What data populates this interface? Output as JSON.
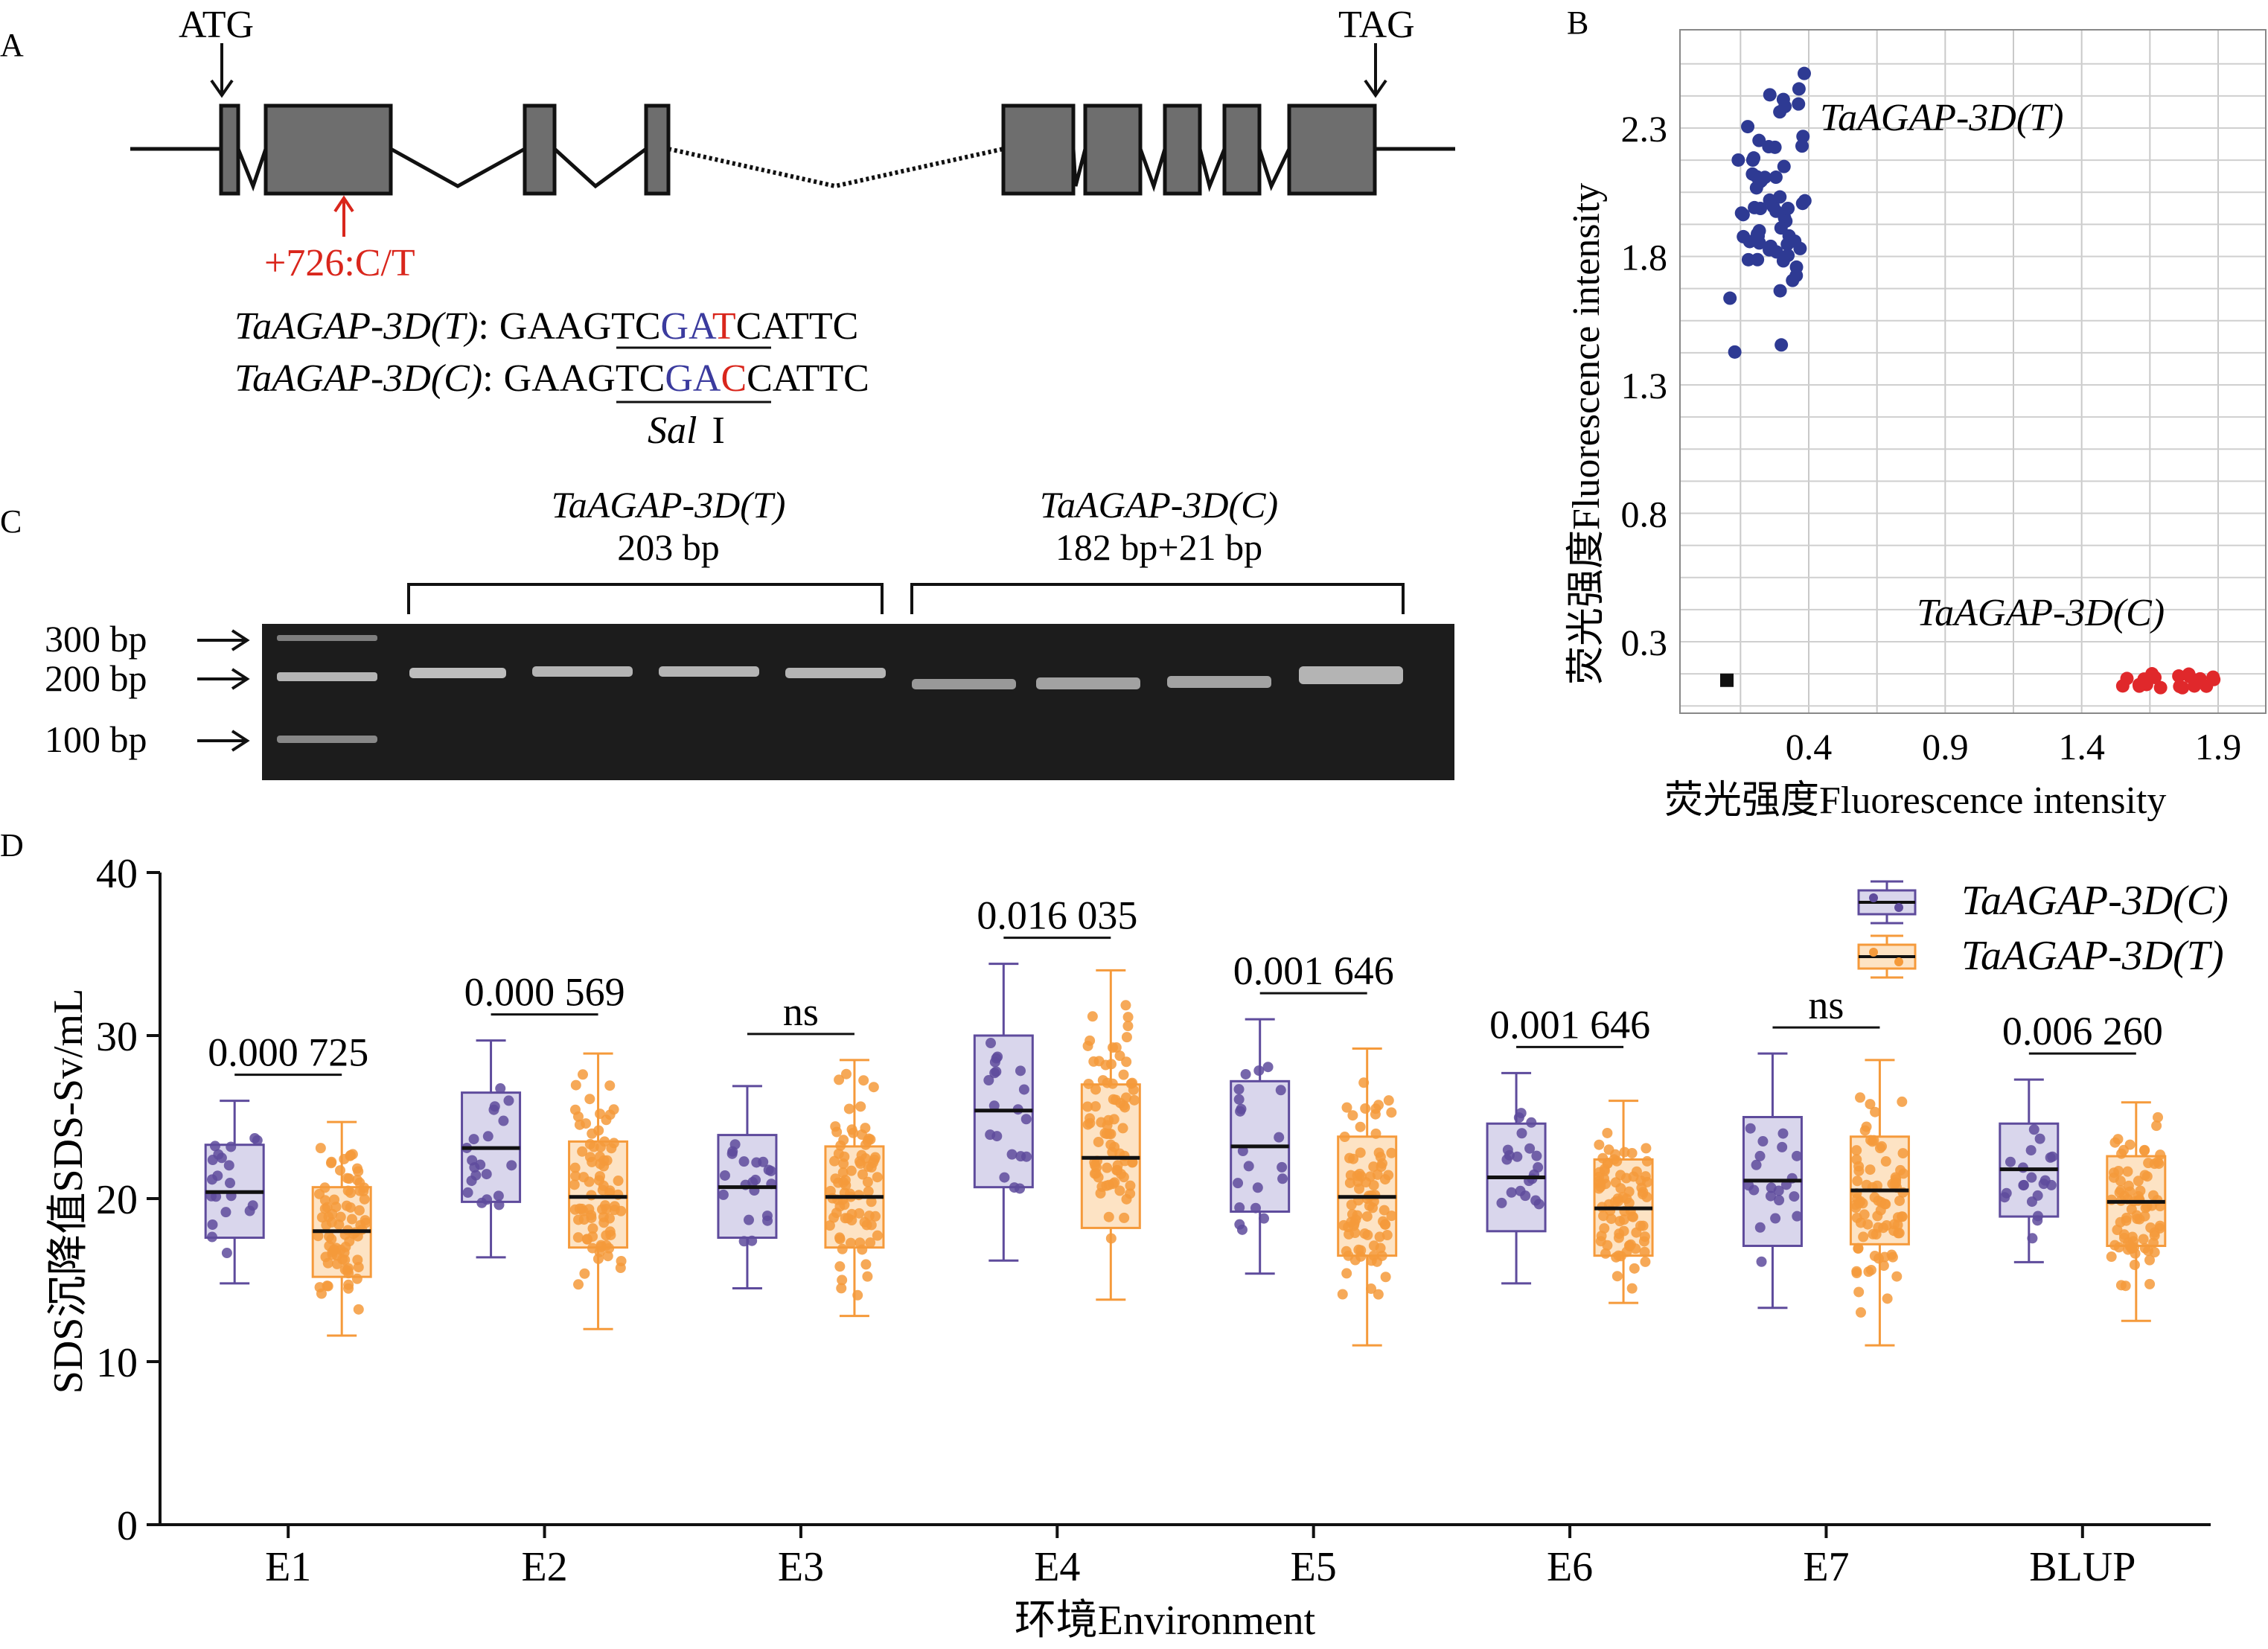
{
  "panels": {
    "a": "A",
    "b": "B",
    "c": "C",
    "d": "D"
  },
  "gene": {
    "start_codon": "ATG",
    "stop_codon": "TAG",
    "snp_label": "+726:C/T",
    "seq_t_name": "TaAGAP-3D(T)",
    "seq_c_name": "TaAGAP-3D(C)",
    "seq_prefix": "GA",
    "seq_site_underlined": "AGTC",
    "seq_g": "G",
    "seq_a": "A",
    "seq_t_snp": "T",
    "seq_c_snp": "C",
    "seq_suffix": "CATTC",
    "colon": ":",
    "enzyme_italic": "Sal",
    "enzyme_roman": "I",
    "colors": {
      "exon": "#6e6e6e",
      "snp_red": "#d9261c",
      "site_blue": "#3b3b9e"
    }
  },
  "gel": {
    "group_t_name": "TaAGAP-3D(T)",
    "group_t_size": "203 bp",
    "group_c_name": "TaAGAP-3D(C)",
    "group_c_size": "182 bp+21 bp",
    "ladder": [
      "300 bp",
      "200 bp",
      "100 bp"
    ]
  },
  "scatter": {
    "ylabel": "荧光强度Fluorescence intensity",
    "xlabel": "荧光强度Fluorescence intensity",
    "y_ticks": [
      "2.3",
      "1.8",
      "1.3",
      "0.8",
      "0.3"
    ],
    "x_ticks": [
      "0.4",
      "0.9",
      "1.4",
      "1.9"
    ],
    "label_t": "TaAGAP-3D(T)",
    "label_c": "TaAGAP-3D(C)",
    "colors": {
      "t": "#2e3a93",
      "c": "#e0282b",
      "ntc": "#111111"
    }
  },
  "chart_data": {
    "type": "box",
    "ylabel": "SDS沉降值SDS-Sv/mL",
    "xlabel": "环境Environment",
    "ylim": [
      0,
      40
    ],
    "yticks": [
      "0",
      "10",
      "20",
      "30",
      "40"
    ],
    "categories": [
      "E1",
      "E2",
      "E3",
      "E4",
      "E5",
      "E6",
      "E7",
      "BLUP"
    ],
    "series": [
      {
        "name": "TaAGAP-3D(C)",
        "color": "#5e4b9c",
        "fill": "#d9d6ec",
        "stats": [
          {
            "min": 14.8,
            "q1": 17.6,
            "median": 20.4,
            "q3": 23.3,
            "max": 26.0
          },
          {
            "min": 16.4,
            "q1": 19.8,
            "median": 23.1,
            "q3": 26.5,
            "max": 29.7
          },
          {
            "min": 14.5,
            "q1": 17.6,
            "median": 20.7,
            "q3": 23.9,
            "max": 26.9
          },
          {
            "min": 16.2,
            "q1": 20.7,
            "median": 25.4,
            "q3": 30.0,
            "max": 34.4
          },
          {
            "min": 15.4,
            "q1": 19.2,
            "median": 23.2,
            "q3": 27.2,
            "max": 31.0
          },
          {
            "min": 14.8,
            "q1": 18.0,
            "median": 21.3,
            "q3": 24.6,
            "max": 27.7
          },
          {
            "min": 13.3,
            "q1": 17.1,
            "median": 21.1,
            "q3": 25.0,
            "max": 28.9
          },
          {
            "min": 16.1,
            "q1": 18.9,
            "median": 21.8,
            "q3": 24.6,
            "max": 27.3
          }
        ]
      },
      {
        "name": "TaAGAP-3D(T)",
        "color": "#f59a3b",
        "fill": "#fde3c4",
        "stats": [
          {
            "min": 11.6,
            "q1": 15.2,
            "median": 18.0,
            "q3": 20.7,
            "max": 24.7
          },
          {
            "min": 12.0,
            "q1": 17.0,
            "median": 20.1,
            "q3": 23.5,
            "max": 28.9
          },
          {
            "min": 12.8,
            "q1": 17.0,
            "median": 20.1,
            "q3": 23.2,
            "max": 28.5
          },
          {
            "min": 13.8,
            "q1": 18.2,
            "median": 22.5,
            "q3": 27.0,
            "max": 34.0
          },
          {
            "min": 11.0,
            "q1": 16.5,
            "median": 20.1,
            "q3": 23.8,
            "max": 29.2
          },
          {
            "min": 13.6,
            "q1": 16.5,
            "median": 19.4,
            "q3": 22.4,
            "max": 26.0
          },
          {
            "min": 11.0,
            "q1": 17.2,
            "median": 20.5,
            "q3": 23.8,
            "max": 28.5
          },
          {
            "min": 12.5,
            "q1": 17.1,
            "median": 19.8,
            "q3": 22.6,
            "max": 25.9
          }
        ]
      }
    ],
    "significance": [
      "0.000 725",
      "0.000 569",
      "ns",
      "0.016 035",
      "0.001 646",
      "0.001 646",
      "ns",
      "0.006 260"
    ]
  }
}
